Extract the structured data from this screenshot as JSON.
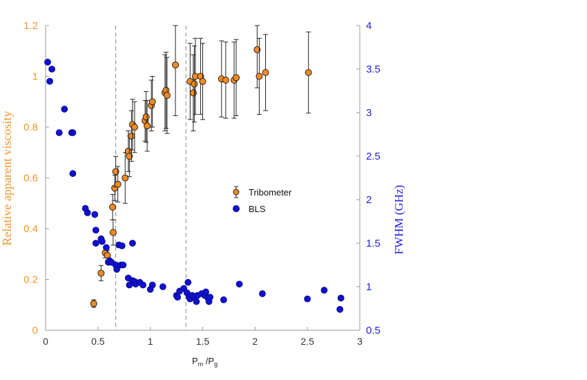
{
  "chart_data": {
    "type": "scatter",
    "x_label": {
      "main": "P",
      "sub1": "m",
      "sep": " /P",
      "sub2": "g"
    },
    "y_left_label": "Relative apparent viscosity",
    "y_right_label": "FWHM (GHz)",
    "x_range": [
      0,
      3
    ],
    "y_left_range": [
      0,
      1.2
    ],
    "y_right_range": [
      0.5,
      4
    ],
    "x_ticks": [
      "0",
      "0.5",
      "1",
      "1.5",
      "2",
      "2.5",
      "3"
    ],
    "y_left_ticks": [
      "0",
      "0.2",
      "0.4",
      "0.6",
      "0.8",
      "1",
      "1.2"
    ],
    "y_right_ticks": [
      "0.5",
      "1",
      "1.5",
      "2",
      "2.5",
      "3",
      "3.5",
      "4"
    ],
    "vertical_lines": [
      0.67,
      1.34
    ],
    "legend_position": "center-right",
    "legend": [
      {
        "key": "tribometer",
        "label": "Tribometer"
      },
      {
        "key": "bls",
        "label": "BLS"
      }
    ],
    "colors": {
      "tribometer": "#f58a1f",
      "bls": "#1010d0",
      "left_axis": "#f0962e",
      "right_axis": "#1f1fd8"
    },
    "tribometer": [
      [
        0.46,
        0.105,
        0.015
      ],
      [
        0.53,
        0.225,
        0.03
      ],
      [
        0.57,
        0.305,
        0.02
      ],
      [
        0.59,
        0.295,
        0.02
      ],
      [
        0.64,
        0.485,
        0.05
      ],
      [
        0.645,
        0.385,
        0.05
      ],
      [
        0.66,
        0.56,
        0.05
      ],
      [
        0.67,
        0.625,
        0.06
      ],
      [
        0.69,
        0.575,
        0.07
      ],
      [
        0.76,
        0.6,
        0.1
      ],
      [
        0.79,
        0.705,
        0.08
      ],
      [
        0.8,
        0.685,
        0.08
      ],
      [
        0.82,
        0.765,
        0.1
      ],
      [
        0.83,
        0.81,
        0.1
      ],
      [
        0.85,
        0.8,
        0.1
      ],
      [
        0.95,
        0.825,
        0.08
      ],
      [
        0.96,
        0.84,
        0.1
      ],
      [
        0.97,
        0.805,
        0.1
      ],
      [
        1.01,
        0.885,
        0.1
      ],
      [
        1.02,
        0.9,
        0.1
      ],
      [
        1.14,
        0.935,
        0.15
      ],
      [
        1.15,
        0.945,
        0.15
      ],
      [
        1.16,
        0.925,
        0.15
      ],
      [
        1.24,
        1.045,
        0.2
      ],
      [
        1.38,
        0.98,
        0.15
      ],
      [
        1.41,
        0.935,
        0.15
      ],
      [
        1.42,
        0.97,
        0.15
      ],
      [
        1.43,
        1.0,
        0.15
      ],
      [
        1.48,
        1.0,
        0.15
      ],
      [
        1.5,
        0.98,
        0.15
      ],
      [
        1.68,
        0.99,
        0.15
      ],
      [
        1.72,
        0.985,
        0.15
      ],
      [
        1.8,
        0.985,
        0.15
      ],
      [
        1.82,
        0.995,
        0.15
      ],
      [
        2.02,
        1.105,
        0.15
      ],
      [
        2.04,
        1.0,
        0.15
      ],
      [
        2.1,
        1.015,
        0.15
      ],
      [
        2.51,
        1.015,
        0.16
      ]
    ],
    "bls": [
      [
        0.02,
        3.58
      ],
      [
        0.04,
        3.36
      ],
      [
        0.06,
        3.5
      ],
      [
        0.13,
        2.77
      ],
      [
        0.18,
        3.04
      ],
      [
        0.25,
        2.77
      ],
      [
        0.26,
        2.77
      ],
      [
        0.26,
        2.3
      ],
      [
        0.38,
        1.9
      ],
      [
        0.4,
        1.85
      ],
      [
        0.47,
        1.83
      ],
      [
        0.48,
        1.5
      ],
      [
        0.48,
        1.65
      ],
      [
        0.53,
        1.55
      ],
      [
        0.54,
        1.52
      ],
      [
        0.58,
        1.45
      ],
      [
        0.6,
        1.28
      ],
      [
        0.61,
        1.3
      ],
      [
        0.63,
        1.28
      ],
      [
        0.67,
        1.25
      ],
      [
        0.68,
        1.2
      ],
      [
        0.7,
        1.48
      ],
      [
        0.72,
        1.25
      ],
      [
        0.73,
        1.47
      ],
      [
        0.74,
        1.25
      ],
      [
        0.79,
        1.1
      ],
      [
        0.8,
        1.02
      ],
      [
        0.83,
        1.5
      ],
      [
        0.83,
        1.07
      ],
      [
        0.85,
        1.06
      ],
      [
        0.86,
        1.03
      ],
      [
        0.9,
        1.05
      ],
      [
        0.93,
        1.02
      ],
      [
        1.0,
        0.97
      ],
      [
        1.02,
        1.02
      ],
      [
        1.12,
        1.0
      ],
      [
        1.25,
        0.9
      ],
      [
        1.26,
        0.88
      ],
      [
        1.28,
        0.95
      ],
      [
        1.32,
        0.98
      ],
      [
        1.35,
        0.93
      ],
      [
        1.36,
        1.05
      ],
      [
        1.37,
        0.88
      ],
      [
        1.38,
        0.86
      ],
      [
        1.4,
        0.9
      ],
      [
        1.42,
        0.88
      ],
      [
        1.44,
        0.83
      ],
      [
        1.45,
        0.9
      ],
      [
        1.49,
        0.92
      ],
      [
        1.52,
        0.9
      ],
      [
        1.53,
        0.94
      ],
      [
        1.55,
        0.87
      ],
      [
        1.56,
        0.83
      ],
      [
        1.57,
        0.88
      ],
      [
        1.7,
        0.85
      ],
      [
        1.85,
        1.03
      ],
      [
        2.07,
        0.92
      ],
      [
        2.5,
        0.86
      ],
      [
        2.66,
        0.96
      ],
      [
        2.81,
        0.74
      ],
      [
        2.82,
        0.87
      ]
    ]
  }
}
